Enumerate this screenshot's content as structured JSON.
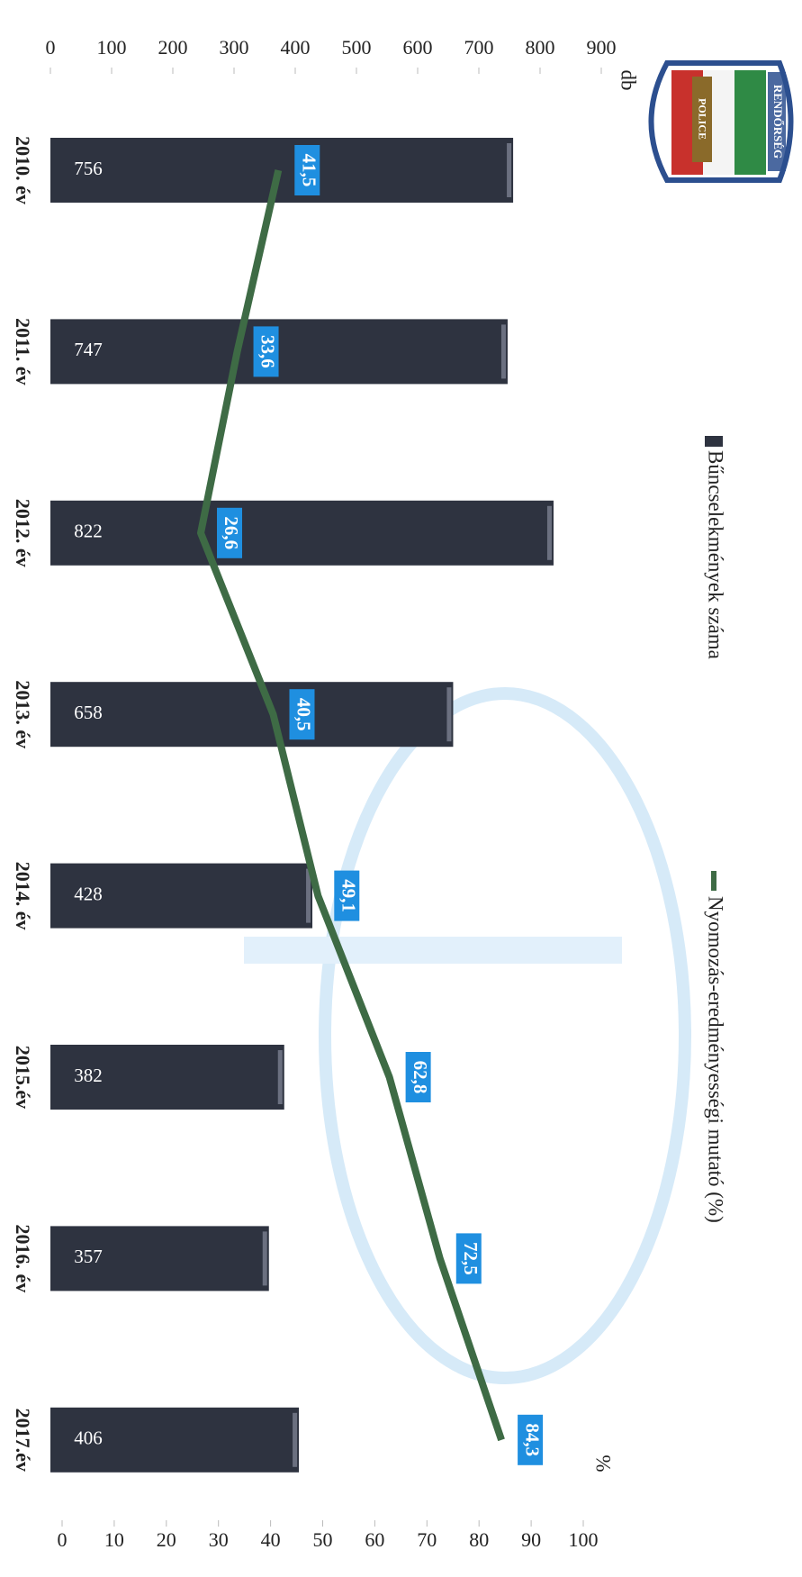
{
  "chart_data": {
    "type": "bar",
    "logo_text": [
      "RENDŐRSÉG",
      "POLICE"
    ],
    "y_unit": "db",
    "y2_unit": "%",
    "categories": [
      "2010. év",
      "2011. év",
      "2012. év",
      "2013. év",
      "2014. év",
      "2015.év",
      "2016. év",
      "2017.év"
    ],
    "series": [
      {
        "name": "Bűncselekmények száma",
        "type": "bar",
        "color": "#2e3340",
        "values": [
          756,
          747,
          822,
          658,
          428,
          382,
          357,
          406
        ]
      },
      {
        "name": "Nyomozás-eredményességi mutató (%)",
        "type": "line",
        "axis": "y2",
        "color": "#3e6b45",
        "label_color": "#1f8fe0",
        "values": [
          41.5,
          33.6,
          26.6,
          40.5,
          49.1,
          62.8,
          72.5,
          84.3
        ],
        "value_labels": [
          "41,5",
          "33,6",
          "26,6",
          "40,5",
          "49,1",
          "62,8",
          "72,5",
          "84,3"
        ]
      }
    ],
    "ylim": [
      0,
      900
    ],
    "yticks": [
      0,
      100,
      200,
      300,
      400,
      500,
      600,
      700,
      800,
      900
    ],
    "y2lim": [
      0,
      100
    ],
    "y2ticks": [
      0,
      10,
      20,
      30,
      40,
      50,
      60,
      70,
      80,
      90,
      100
    ],
    "grid": false
  }
}
